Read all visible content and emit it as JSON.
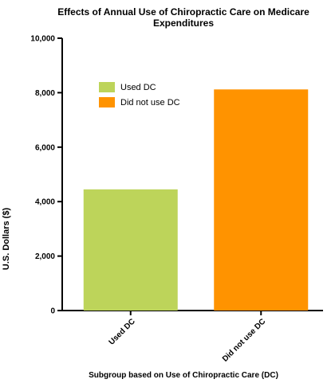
{
  "chart_data": {
    "type": "bar",
    "title": "Effects of Annual Use of Chiropractic Care on Medicare Expenditures",
    "xlabel": "Subgroup based on Use of Chiropractic Care (DC)",
    "ylabel": "U.S. Dollars ($)",
    "categories": [
      "Used DC",
      "Did not use DC"
    ],
    "values": [
      4450,
      8120
    ],
    "colors": [
      "#bdd45a",
      "#ff9300"
    ],
    "ylim": [
      0,
      10000
    ],
    "yticks": [
      0,
      2000,
      4000,
      6000,
      8000,
      10000
    ],
    "ytick_labels": [
      "0",
      "2,000",
      "4,000",
      "6,000",
      "8,000",
      "10,000"
    ],
    "grid": false,
    "legend": {
      "placement": "top-left",
      "entries": [
        "Used DC",
        "Did not use DC"
      ]
    }
  }
}
